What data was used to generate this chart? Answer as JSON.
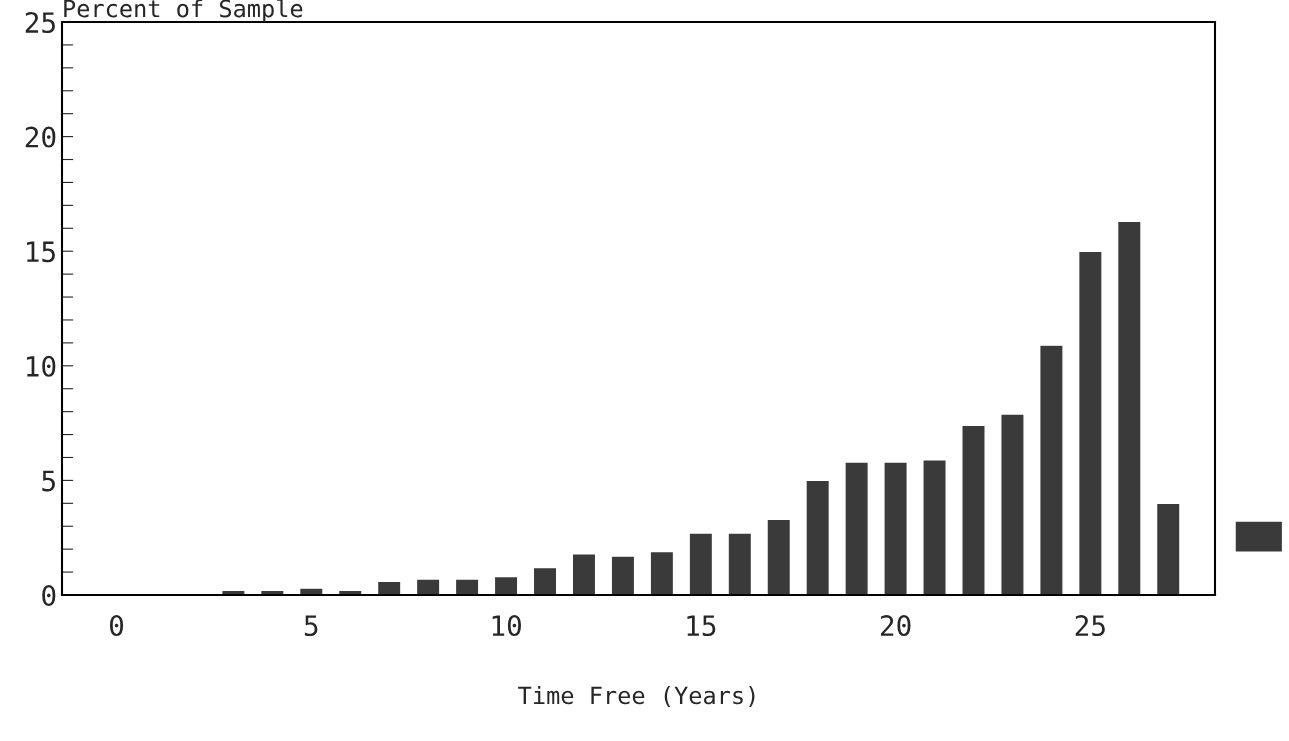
{
  "chart_data": {
    "type": "bar",
    "ylabel": "Percent of Sample",
    "xlabel": "Time Free (Years)",
    "x": [
      3,
      4,
      5,
      6,
      7,
      8,
      9,
      10,
      11,
      12,
      13,
      14,
      15,
      16,
      17,
      18,
      19,
      20,
      21,
      22,
      23,
      24,
      25,
      26,
      27
    ],
    "values": [
      0.2,
      0.2,
      0.3,
      0.2,
      0.6,
      0.7,
      0.7,
      0.8,
      1.2,
      1.8,
      1.7,
      1.9,
      2.7,
      2.7,
      3.3,
      5.0,
      5.8,
      5.8,
      5.9,
      7.4,
      7.9,
      10.9,
      15.0,
      16.3,
      4.0
    ],
    "color": "#3a3a3a",
    "xlim": [
      -1.4,
      28.2
    ],
    "xticks": [
      0,
      5,
      10,
      15,
      20,
      25
    ],
    "ylim": [
      0,
      25
    ],
    "yticks": [
      0,
      {
        "value": 1,
        "label": null
      },
      {
        "value": 2,
        "label": null
      },
      {
        "value": 3,
        "label": null
      },
      {
        "value": 4,
        "label": null
      },
      5,
      {
        "value": 6,
        "label": null
      },
      {
        "value": 7,
        "label": null
      },
      {
        "value": 8,
        "label": null
      },
      {
        "value": 9,
        "label": null
      },
      10,
      {
        "value": 11,
        "label": null
      },
      {
        "value": 12,
        "label": null
      },
      {
        "value": 13,
        "label": null
      },
      {
        "value": 14,
        "label": null
      },
      15,
      {
        "value": 16,
        "label": null
      },
      {
        "value": 17,
        "label": null
      },
      {
        "value": 18,
        "label": null
      },
      {
        "value": 19,
        "label": null
      },
      20,
      {
        "value": 21,
        "label": null
      },
      {
        "value": 22,
        "label": null
      },
      {
        "value": 23,
        "label": null
      },
      {
        "value": 24,
        "label": null
      },
      25
    ],
    "grid": false
  }
}
